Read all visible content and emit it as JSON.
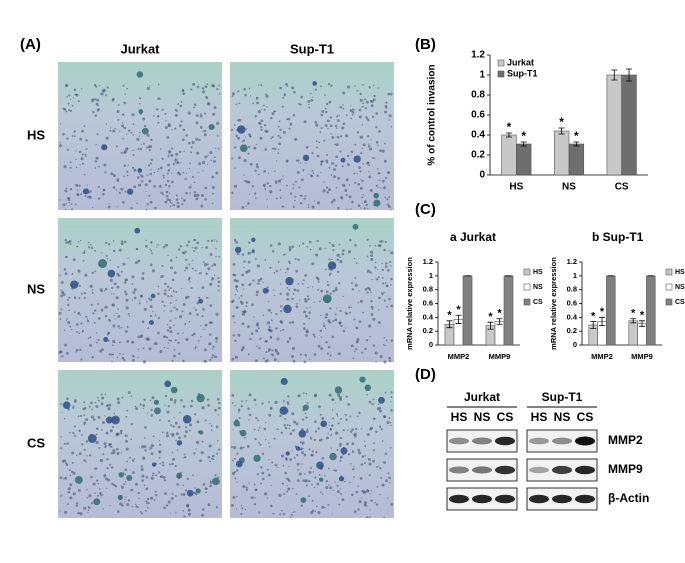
{
  "panel_labels": [
    "(A)",
    "(B)",
    "(C)",
    "(D)"
  ],
  "micrographs": {
    "columns": [
      "Jurkat",
      "Sup-T1"
    ],
    "rows": [
      "HS",
      "NS",
      "CS"
    ]
  },
  "chart_data": [
    {
      "type": "bar",
      "ylabel": "% of control invasion",
      "categories": [
        "HS",
        "NS",
        "CS"
      ],
      "series": [
        {
          "name": "Jurkat",
          "color": "#c8c8c8",
          "values": [
            0.4,
            0.44,
            1.0
          ],
          "errors": [
            0.02,
            0.03,
            0.05
          ],
          "marks": [
            "*",
            "*",
            null
          ]
        },
        {
          "name": "Sup-T1",
          "color": "#6e6e6e",
          "values": [
            0.31,
            0.31,
            1.0
          ],
          "errors": [
            0.02,
            0.02,
            0.06
          ],
          "marks": [
            "*",
            "*",
            null
          ]
        }
      ],
      "ylim": [
        0,
        1.2
      ],
      "yticks": [
        0,
        0.2,
        0.4,
        0.6,
        0.8,
        1,
        1.2
      ],
      "legend": "upper left"
    },
    {
      "type": "bar",
      "title": "a Jurkat",
      "ylabel": "mRNA relative expression",
      "categories": [
        "MMP2",
        "MMP9"
      ],
      "series": [
        {
          "name": "HS",
          "color": "#c8c8c8",
          "values": [
            0.3,
            0.28
          ],
          "errors": [
            0.05,
            0.05
          ],
          "marks": [
            "*",
            "*"
          ]
        },
        {
          "name": "NS",
          "color": "#ffffff",
          "values": [
            0.37,
            0.34
          ],
          "errors": [
            0.06,
            0.04
          ],
          "marks": [
            "*",
            "*"
          ]
        },
        {
          "name": "CS",
          "color": "#808080",
          "values": [
            1.0,
            1.0
          ],
          "errors": [
            0,
            0
          ],
          "marks": [
            null,
            null
          ]
        }
      ],
      "ylim": [
        0,
        1.2
      ],
      "yticks": [
        0,
        0.2,
        0.4,
        0.6,
        0.8,
        1,
        1.2
      ],
      "legend": "right"
    },
    {
      "type": "bar",
      "title": "b Sup-T1",
      "ylabel": "mRNA relative expression",
      "categories": [
        "MMP2",
        "MMP9"
      ],
      "series": [
        {
          "name": "HS",
          "color": "#c8c8c8",
          "values": [
            0.29,
            0.35
          ],
          "errors": [
            0.05,
            0.03
          ],
          "marks": [
            "*",
            "*"
          ]
        },
        {
          "name": "NS",
          "color": "#ffffff",
          "values": [
            0.34,
            0.31
          ],
          "errors": [
            0.06,
            0.04
          ],
          "marks": [
            "*",
            "*"
          ]
        },
        {
          "name": "CS",
          "color": "#808080",
          "values": [
            1.0,
            1.0
          ],
          "errors": [
            0,
            0
          ],
          "marks": [
            null,
            null
          ]
        }
      ],
      "ylim": [
        0,
        1.2
      ],
      "yticks": [
        0,
        0.2,
        0.4,
        0.6,
        0.8,
        1,
        1.2
      ],
      "legend": "right"
    }
  ],
  "blot": {
    "groups": [
      "Jurkat",
      "Sup-T1"
    ],
    "lanes": [
      "HS",
      "NS",
      "CS",
      "HS",
      "NS",
      "CS"
    ],
    "proteins": [
      "MMP2",
      "MMP9",
      "β-Actin"
    ]
  }
}
